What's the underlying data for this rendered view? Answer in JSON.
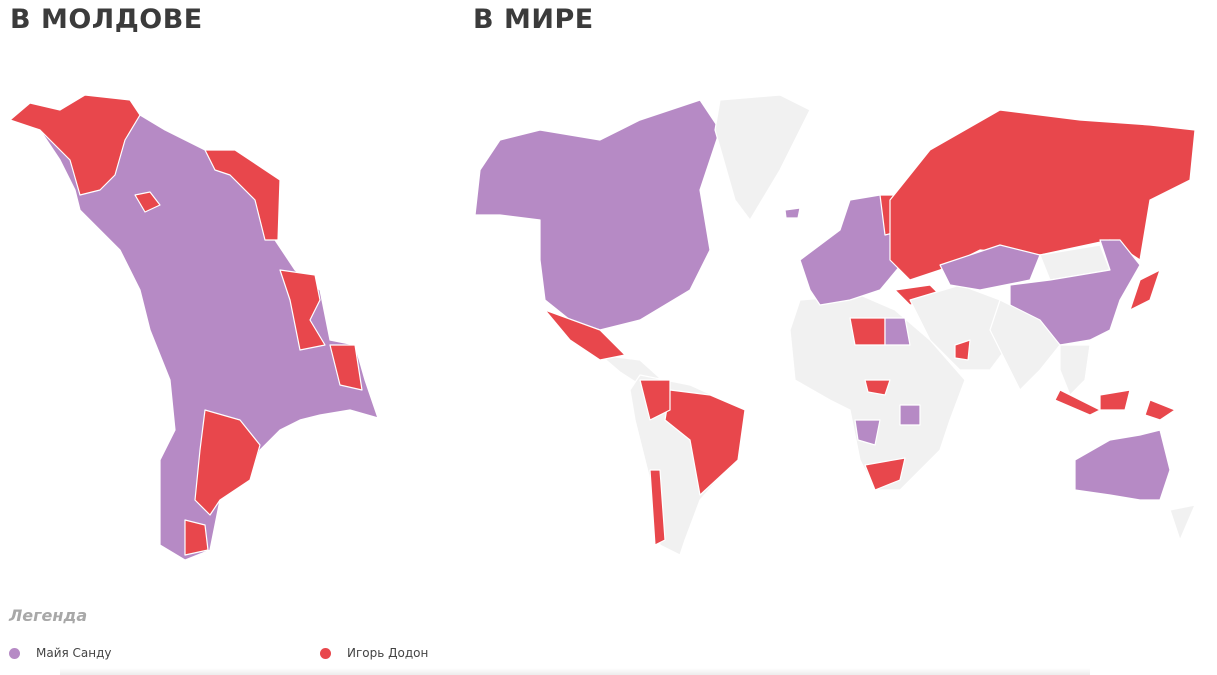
{
  "left_title": "В МОЛДОВЕ",
  "right_title": "В МИРЕ",
  "legend": {
    "title": "Легенда",
    "items": [
      {
        "label": "Майя Санду",
        "color": "#b68ac5"
      },
      {
        "label": "Игорь Додон",
        "color": "#e8474c"
      }
    ]
  }
}
